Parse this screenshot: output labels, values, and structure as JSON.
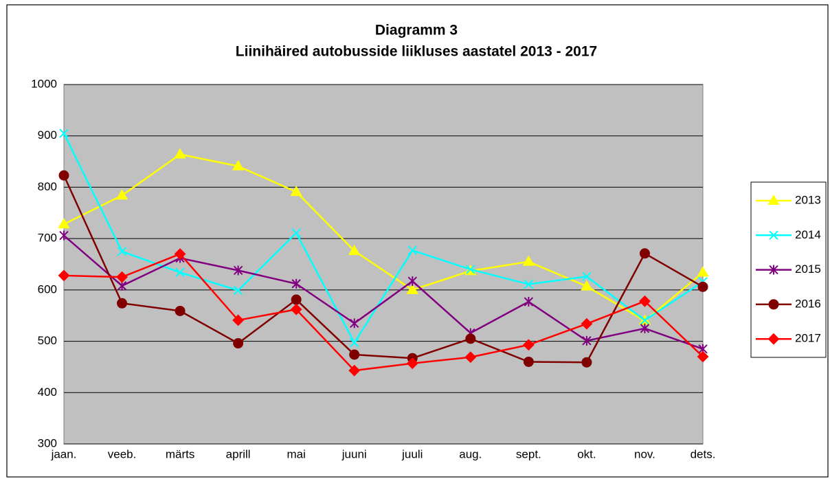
{
  "chart_data": {
    "type": "line",
    "title": "Diagramm 3",
    "subtitle": "Liinihäired autobusside liikluses aastatel 2013 - 2017",
    "categories": [
      "jaan.",
      "veeb.",
      "märts",
      "aprill",
      "mai",
      "juuni",
      "juuli",
      "aug.",
      "sept.",
      "okt.",
      "nov.",
      "dets."
    ],
    "series": [
      {
        "name": "2013",
        "color": "#ffff00",
        "marker": "triangle",
        "values": [
          728,
          784,
          864,
          841,
          791,
          676,
          600,
          637,
          655,
          607,
          540,
          634
        ]
      },
      {
        "name": "2014",
        "color": "#00ffff",
        "marker": "x",
        "values": [
          905,
          675,
          634,
          599,
          711,
          497,
          677,
          640,
          611,
          626,
          541,
          616
        ]
      },
      {
        "name": "2015",
        "color": "#800080",
        "marker": "star",
        "values": [
          706,
          608,
          662,
          638,
          612,
          535,
          617,
          516,
          577,
          501,
          525,
          485
        ]
      },
      {
        "name": "2016",
        "color": "#800000",
        "marker": "circle",
        "values": [
          823,
          574,
          559,
          496,
          581,
          474,
          467,
          505,
          460,
          459,
          671,
          606
        ]
      },
      {
        "name": "2017",
        "color": "#ff0000",
        "marker": "diamond",
        "values": [
          628,
          625,
          670,
          541,
          562,
          443,
          457,
          469,
          493,
          534,
          578,
          470
        ]
      }
    ],
    "ylim": [
      300,
      1000
    ],
    "yticks": [
      300,
      400,
      500,
      600,
      700,
      800,
      900,
      1000
    ],
    "grid": true,
    "legend": "right"
  }
}
